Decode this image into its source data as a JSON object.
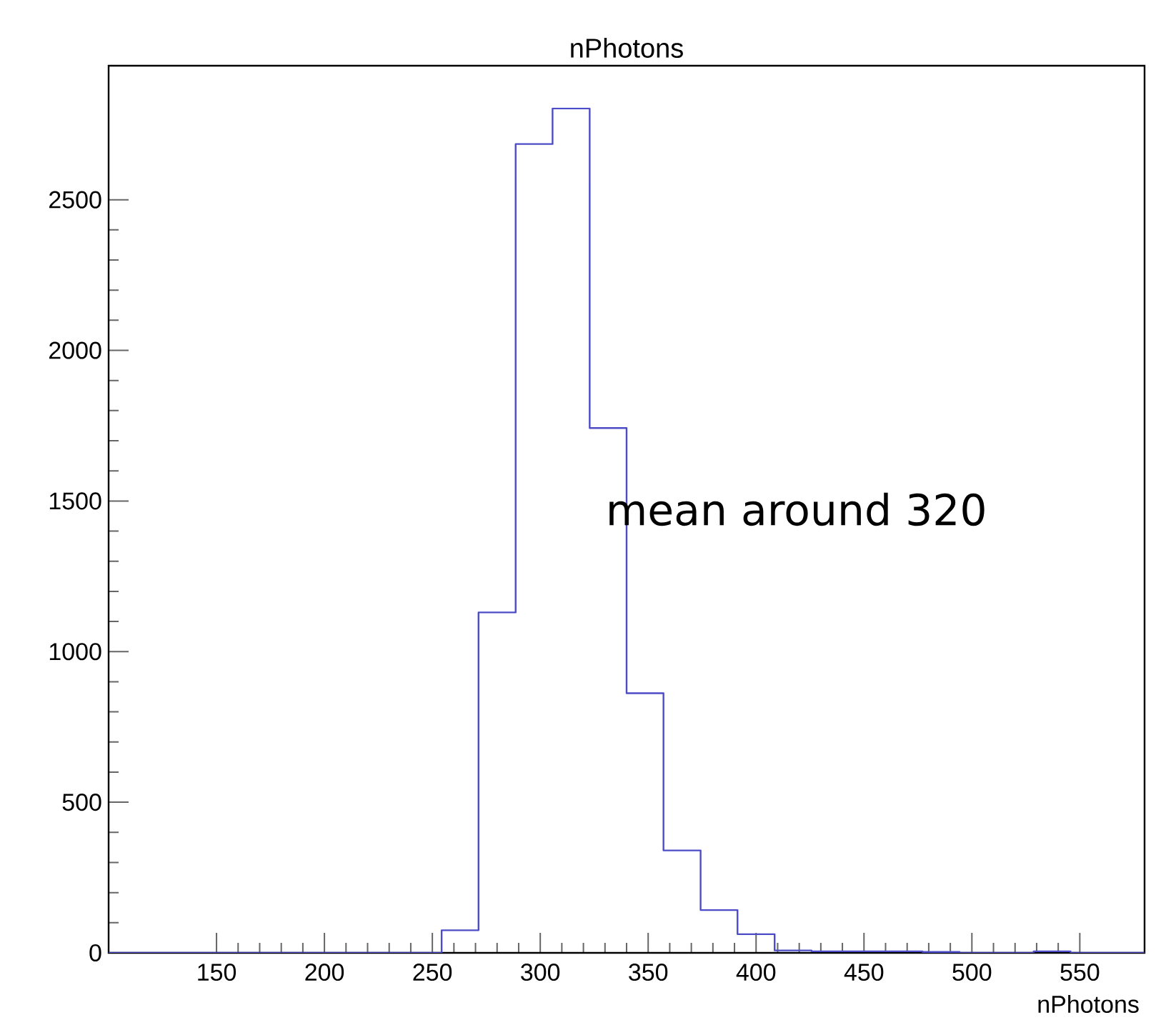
{
  "chart_data": {
    "type": "histogram",
    "title": "nPhotons",
    "xlabel": "nPhotons",
    "bins": [
      100,
      117.1,
      134.3,
      151.4,
      168.6,
      185.7,
      202.9,
      220,
      237.1,
      254.3,
      271.4,
      288.6,
      305.7,
      322.9,
      340,
      357.1,
      374.3,
      391.4,
      408.6,
      425.7,
      442.9,
      460,
      477.1,
      494.3,
      511.4,
      528.6,
      545.7,
      562.9,
      580
    ],
    "values": [
      0,
      0,
      0,
      0,
      0,
      0,
      0,
      0,
      0,
      75,
      1130,
      2685,
      2803,
      1742,
      862,
      340,
      142,
      62,
      8,
      5,
      5,
      5,
      3,
      0,
      0,
      5,
      0,
      0
    ],
    "color": "#4c4cc8",
    "xlim": [
      100,
      580
    ],
    "ylim": [
      0,
      2945
    ],
    "xticks": [
      150,
      200,
      250,
      300,
      350,
      400,
      450,
      500,
      550
    ],
    "yticks": [
      0,
      500,
      1000,
      1500,
      2000,
      2500
    ],
    "grid": false,
    "annotations": [
      "mean around 320"
    ]
  }
}
